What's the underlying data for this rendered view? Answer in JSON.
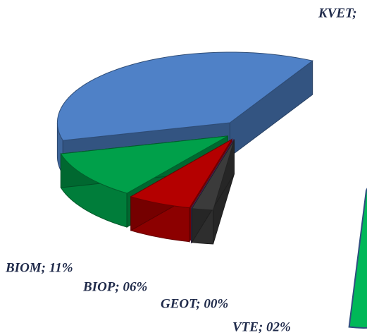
{
  "chart_data": {
    "type": "pie3d",
    "labels": [
      "VTE; 02%",
      "GEOT; 00%",
      "BIOP; 06%",
      "BIOM; 11%",
      "KVET;",
      null
    ],
    "values": [
      2,
      0,
      6,
      11,
      37,
      44
    ],
    "colors": [
      "#3b3b3b",
      "#7030a0",
      "#b40000",
      "#00a04a",
      "#4f81c7",
      "#00b858"
    ]
  }
}
